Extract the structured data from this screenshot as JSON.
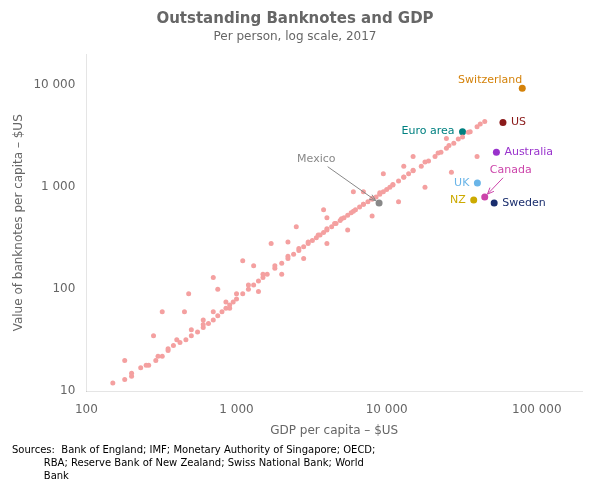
{
  "chart_data": {
    "type": "scatter",
    "title": "Outstanding Banknotes and GDP",
    "subtitle": "Per person, log scale, 2017",
    "xlabel": "GDP per capita – $US",
    "ylabel": "Value of banknotes per capita – $US",
    "source": "Sources:  Bank of England; IMF; Monetary Authority of Singapore; OECD;\n          RBA; Reserve Bank of New Zealand; Swiss National Bank; World\n          Bank",
    "log": true,
    "grid": false,
    "series": [
      {
        "color": "#f4a0a0",
        "x": [
          150,
          180,
          200,
          230,
          260,
          290,
          320,
          350,
          380,
          420,
          460,
          500,
          550,
          600,
          650,
          700,
          750,
          800,
          850,
          900,
          950,
          1000,
          1100,
          1200,
          1300,
          1400,
          1500,
          1600,
          1800,
          2000,
          2200,
          2400,
          2600,
          2800,
          3000,
          3200,
          3400,
          3600,
          3800,
          4000,
          4300,
          4600,
          4900,
          5200,
          5500,
          5800,
          6200,
          6600,
          7000,
          7500,
          8000,
          8500,
          9000,
          9500,
          10000,
          10500,
          11000,
          12000,
          13000,
          14000,
          15000,
          17000,
          19000,
          21000,
          23000,
          25000,
          28000,
          32000,
          36000,
          40000,
          45000,
          200,
          250,
          300,
          350,
          400,
          500,
          600,
          700,
          850,
          1000,
          1200,
          1500,
          1800,
          2200,
          2600,
          3000,
          3500,
          4000,
          4500,
          5000,
          6000,
          7000,
          8000,
          9000,
          11000,
          13000,
          15000,
          18000,
          22000,
          26000,
          30000,
          35000,
          42000,
          600,
          900,
          1400,
          2000,
          2800,
          4000,
          5500,
          8000,
          12000,
          18000,
          27000,
          40000,
          320,
          480,
          700,
          1100,
          1700,
          2500,
          3800,
          6000,
          9500,
          15000,
          25000,
          180,
          280,
          450,
          750,
          1300,
          2200,
          4000,
          7000,
          13000
        ],
        "values": [
          12,
          13,
          15,
          17,
          18,
          20,
          22,
          25,
          28,
          30,
          32,
          35,
          38,
          42,
          46,
          50,
          55,
          60,
          65,
          70,
          75,
          80,
          90,
          100,
          110,
          120,
          130,
          140,
          160,
          180,
          200,
          220,
          240,
          260,
          280,
          300,
          320,
          340,
          360,
          380,
          410,
          440,
          470,
          500,
          530,
          560,
          600,
          640,
          680,
          720,
          760,
          800,
          850,
          900,
          950,
          1000,
          1050,
          1150,
          1250,
          1350,
          1450,
          1600,
          1800,
          2000,
          2200,
          2400,
          2700,
          3100,
          3500,
          3900,
          4400,
          14,
          18,
          22,
          26,
          32,
          40,
          50,
          60,
          75,
          90,
          110,
          140,
          170,
          210,
          250,
          290,
          340,
          390,
          440,
          490,
          580,
          680,
          780,
          880,
          1060,
          1260,
          1460,
          1760,
          2160,
          2560,
          2960,
          3460,
          4160,
          45,
          65,
          95,
          140,
          200,
          280,
          380,
          520,
          720,
          1000,
          1400,
          2000,
          60,
          90,
          130,
          190,
          280,
          410,
          600,
          900,
          1350,
          2000,
          3000,
          20,
          35,
          60,
          100,
          170,
          290,
          500,
          900,
          1600
        ]
      }
    ],
    "annotations": [
      {
        "text": "Switzerland",
        "x": 80000,
        "y": 9300,
        "color": "#d4820a",
        "side": "above"
      },
      {
        "text": "US",
        "x": 59500,
        "y": 4300,
        "color": "#8b1a1a",
        "side": "right"
      },
      {
        "text": "Euro area",
        "x": 32000,
        "y": 3500,
        "color": "#008080",
        "side": "left"
      },
      {
        "text": "Australia",
        "x": 53800,
        "y": 2200,
        "color": "#9932cc",
        "side": "right"
      },
      {
        "text": "UK",
        "x": 40200,
        "y": 1100,
        "color": "#6ab5e8",
        "side": "left"
      },
      {
        "text": "NZ",
        "x": 38000,
        "y": 750,
        "color": "#ccaa00",
        "side": "left"
      },
      {
        "text": "Canada",
        "x": 45000,
        "y": 800,
        "color": "#cc44aa",
        "arrow": true,
        "text_x": 67000,
        "text_y": 1480
      },
      {
        "text": "Sweden",
        "x": 52000,
        "y": 700,
        "color": "#1a2e6e",
        "side": "right"
      },
      {
        "text": "Mexico",
        "x": 8900,
        "y": 700,
        "color": "#888888",
        "arrow": true,
        "text_x": 3400,
        "text_y": 1900
      }
    ],
    "xlim": [
      100,
      200000
    ],
    "ylim": [
      10,
      20000
    ],
    "xticks": [
      100,
      {
        "value": 1000,
        "label": "1 000"
      },
      {
        "value": 10000,
        "label": "10 000"
      },
      {
        "value": 100000,
        "label": "100 000"
      }
    ],
    "yticks": [
      10,
      100,
      {
        "value": 1000,
        "label": "1 000"
      },
      {
        "value": 10000,
        "label": "10 000"
      }
    ]
  }
}
